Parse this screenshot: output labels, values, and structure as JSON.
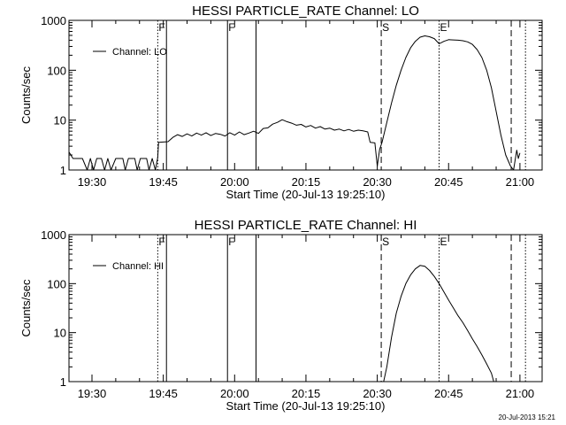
{
  "chart_data": [
    {
      "type": "line",
      "title": "HESSI PARTICLE_RATE Channel: LO",
      "xlabel": "Start Time (20-Jul-13 19:25:10)",
      "ylabel": "Counts/sec",
      "yscale": "log",
      "ylim": [
        1,
        1000
      ],
      "xlim": [
        "19:25:10",
        "21:04:40"
      ],
      "grid": false,
      "legend": {
        "placement": "top-left",
        "entries": [
          "Channel: LO"
        ]
      },
      "x_ticks": [
        "19:30",
        "19:45",
        "20:00",
        "20:15",
        "20:30",
        "20:45",
        "21:00"
      ],
      "y_ticks": [
        "1",
        "10",
        "100",
        "1000"
      ],
      "markers": [
        {
          "time": "19:43:50",
          "style": "dotted",
          "label": "F"
        },
        {
          "time": "19:45:40",
          "style": "solid",
          "label": ""
        },
        {
          "time": "19:58:30",
          "style": "solid",
          "label": "F"
        },
        {
          "time": "20:04:30",
          "style": "solid",
          "label": ""
        },
        {
          "time": "20:30:50",
          "style": "dashed",
          "label": "S"
        },
        {
          "time": "20:43:00",
          "style": "dotted",
          "label": "E"
        },
        {
          "time": "20:58:10",
          "style": "dashed",
          "label": ""
        },
        {
          "time": "21:01:10",
          "style": "dotted",
          "label": ""
        }
      ],
      "series": [
        {
          "name": "Channel: LO",
          "points": [
            [
              "19:25:10",
              2.3
            ],
            [
              "19:26:00",
              1.7
            ],
            [
              "19:28:00",
              1.7
            ],
            [
              "19:29:00",
              1.0
            ],
            [
              "19:29:40",
              1.7
            ],
            [
              "19:30:20",
              1.0
            ],
            [
              "19:31:00",
              1.7
            ],
            [
              "19:32:00",
              1.7
            ],
            [
              "19:32:40",
              1.0
            ],
            [
              "19:33:20",
              1.7
            ],
            [
              "19:34:00",
              1.0
            ],
            [
              "19:35:00",
              1.7
            ],
            [
              "19:36:30",
              1.7
            ],
            [
              "19:37:00",
              1.0
            ],
            [
              "19:37:40",
              1.7
            ],
            [
              "19:39:00",
              1.7
            ],
            [
              "19:39:30",
              1.0
            ],
            [
              "19:40:10",
              1.7
            ],
            [
              "19:41:30",
              1.7
            ],
            [
              "19:42:00",
              1.0
            ],
            [
              "19:42:40",
              1.7
            ],
            [
              "19:43:20",
              1.0
            ],
            [
              "19:43:50",
              1.8
            ],
            [
              "19:44:00",
              3.6
            ],
            [
              "19:46:00",
              3.7
            ],
            [
              "19:47:00",
              4.5
            ],
            [
              "19:48:00",
              5.1
            ],
            [
              "19:49:00",
              4.7
            ],
            [
              "19:50:00",
              5.3
            ],
            [
              "19:51:00",
              4.8
            ],
            [
              "19:52:00",
              5.5
            ],
            [
              "19:53:00",
              5.0
            ],
            [
              "19:54:00",
              5.6
            ],
            [
              "19:55:00",
              4.9
            ],
            [
              "19:56:00",
              5.4
            ],
            [
              "19:57:00",
              5.2
            ],
            [
              "19:58:00",
              4.8
            ],
            [
              "19:59:00",
              5.6
            ],
            [
              "20:00:00",
              5.0
            ],
            [
              "20:01:00",
              5.8
            ],
            [
              "20:02:00",
              5.1
            ],
            [
              "20:03:00",
              5.5
            ],
            [
              "20:04:00",
              6.0
            ],
            [
              "20:05:00",
              5.4
            ],
            [
              "20:06:00",
              6.8
            ],
            [
              "20:07:00",
              7.0
            ],
            [
              "20:08:00",
              8.3
            ],
            [
              "20:09:00",
              9.0
            ],
            [
              "20:10:00",
              10.2
            ],
            [
              "20:11:00",
              9.3
            ],
            [
              "20:12:00",
              8.7
            ],
            [
              "20:13:00",
              7.9
            ],
            [
              "20:14:00",
              8.2
            ],
            [
              "20:15:00",
              7.3
            ],
            [
              "20:16:00",
              7.8
            ],
            [
              "20:17:00",
              6.9
            ],
            [
              "20:18:00",
              7.4
            ],
            [
              "20:19:00",
              6.6
            ],
            [
              "20:20:00",
              6.9
            ],
            [
              "20:21:00",
              6.3
            ],
            [
              "20:22:00",
              6.6
            ],
            [
              "20:23:00",
              6.1
            ],
            [
              "20:24:00",
              6.5
            ],
            [
              "20:25:00",
              6.0
            ],
            [
              "20:26:00",
              6.3
            ],
            [
              "20:27:00",
              6.1
            ],
            [
              "20:28:00",
              5.8
            ],
            [
              "20:28:30",
              3.6
            ],
            [
              "20:29:30",
              3.5
            ],
            [
              "20:30:00",
              1.2
            ],
            [
              "20:30:30",
              2.6
            ],
            [
              "20:31:00",
              3.6
            ],
            [
              "20:32:00",
              9.0
            ],
            [
              "20:33:00",
              22
            ],
            [
              "20:34:00",
              50
            ],
            [
              "20:35:00",
              100
            ],
            [
              "20:36:00",
              180
            ],
            [
              "20:37:00",
              280
            ],
            [
              "20:38:00",
              380
            ],
            [
              "20:39:00",
              460
            ],
            [
              "20:40:00",
              490
            ],
            [
              "20:41:00",
              470
            ],
            [
              "20:42:00",
              430
            ],
            [
              "20:43:00",
              340
            ],
            [
              "20:44:00",
              380
            ],
            [
              "20:45:00",
              410
            ],
            [
              "20:46:00",
              405
            ],
            [
              "20:47:00",
              400
            ],
            [
              "20:48:00",
              390
            ],
            [
              "20:49:00",
              370
            ],
            [
              "20:50:00",
              330
            ],
            [
              "20:51:00",
              260
            ],
            [
              "20:52:00",
              180
            ],
            [
              "20:53:00",
              100
            ],
            [
              "20:54:00",
              45
            ],
            [
              "20:55:00",
              15
            ],
            [
              "20:56:00",
              5
            ],
            [
              "20:57:00",
              2
            ],
            [
              "20:58:00",
              1.2
            ],
            [
              "20:58:40",
              1.0
            ],
            [
              "20:59:20",
              2.5
            ],
            [
              "20:59:40",
              1.7
            ],
            [
              "21:00:00",
              2.2
            ]
          ]
        }
      ]
    },
    {
      "type": "line",
      "title": "HESSI PARTICLE_RATE Channel: HI",
      "xlabel": "Start Time (20-Jul-13 19:25:10)",
      "ylabel": "Counts/sec",
      "yscale": "log",
      "ylim": [
        1,
        1000
      ],
      "xlim": [
        "19:25:10",
        "21:04:40"
      ],
      "grid": false,
      "legend": {
        "placement": "top-left",
        "entries": [
          "Channel: HI"
        ]
      },
      "x_ticks": [
        "19:30",
        "19:45",
        "20:00",
        "20:15",
        "20:30",
        "20:45",
        "21:00"
      ],
      "y_ticks": [
        "1",
        "10",
        "100",
        "1000"
      ],
      "markers": [
        {
          "time": "19:43:50",
          "style": "dotted",
          "label": "F"
        },
        {
          "time": "19:45:40",
          "style": "solid",
          "label": ""
        },
        {
          "time": "19:58:30",
          "style": "solid",
          "label": "F"
        },
        {
          "time": "20:04:30",
          "style": "solid",
          "label": ""
        },
        {
          "time": "20:30:50",
          "style": "dashed",
          "label": "S"
        },
        {
          "time": "20:43:00",
          "style": "dotted",
          "label": "E"
        },
        {
          "time": "20:58:10",
          "style": "dashed",
          "label": ""
        },
        {
          "time": "21:01:10",
          "style": "dotted",
          "label": ""
        }
      ],
      "series": [
        {
          "name": "Channel: HI",
          "points": [
            [
              "20:31:20",
              1.0
            ],
            [
              "20:32:00",
              2.0
            ],
            [
              "20:33:00",
              8
            ],
            [
              "20:34:00",
              25
            ],
            [
              "20:35:00",
              55
            ],
            [
              "20:36:00",
              100
            ],
            [
              "20:37:00",
              150
            ],
            [
              "20:38:00",
              200
            ],
            [
              "20:39:00",
              235
            ],
            [
              "20:40:00",
              225
            ],
            [
              "20:41:00",
              185
            ],
            [
              "20:42:00",
              140
            ],
            [
              "20:43:00",
              100
            ],
            [
              "20:44:00",
              68
            ],
            [
              "20:45:00",
              46
            ],
            [
              "20:46:00",
              32
            ],
            [
              "20:47:00",
              22
            ],
            [
              "20:48:00",
              16
            ],
            [
              "20:49:00",
              11
            ],
            [
              "20:50:00",
              7.5
            ],
            [
              "20:51:00",
              5.2
            ],
            [
              "20:52:00",
              3.5
            ],
            [
              "20:53:00",
              2.3
            ],
            [
              "20:54:00",
              1.5
            ],
            [
              "20:54:30",
              1.0
            ]
          ]
        }
      ]
    }
  ],
  "footer": {
    "timestamp": "20-Jul-2013 15:21"
  }
}
